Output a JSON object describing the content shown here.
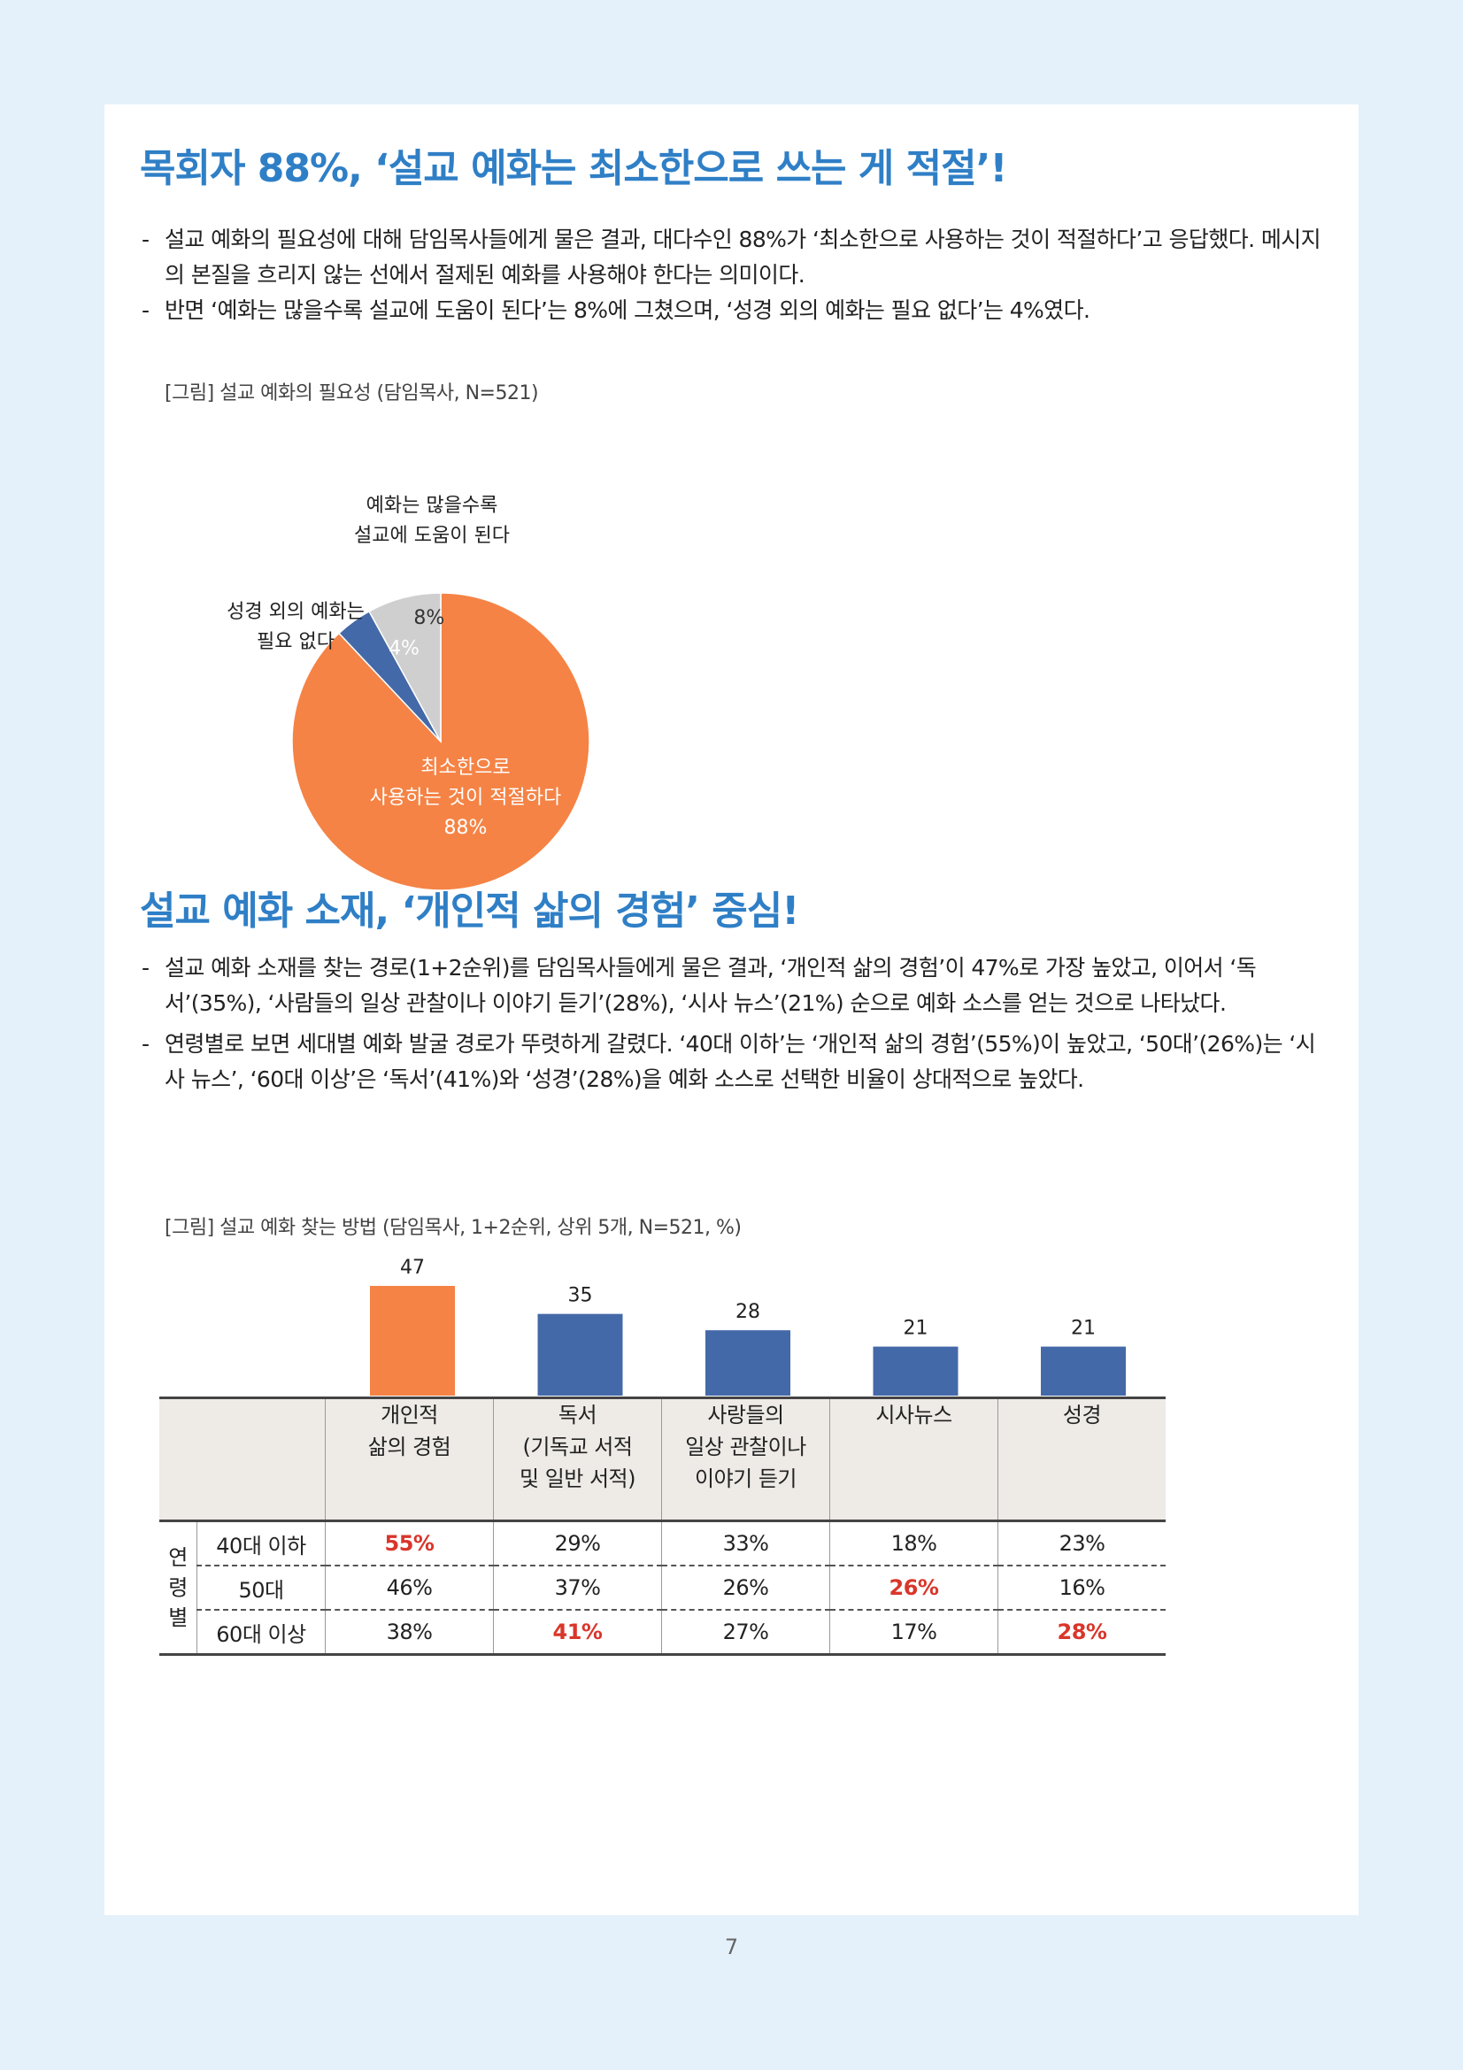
{
  "section1": {
    "title": "목회자 88%, ‘설교 예화는 최소한으로 쓰는 게 적절’!",
    "bullets": [
      "설교 예화의 필요성에 대해 담임목사들에게 물은 결과, 대다수인 88%가 ‘최소한으로 사용하는 것이 적절하다’고 응답했다. 메시지의 본질을 흐리지 않는 선에서 절제된 예화를 사용해야 한다는 의미이다.",
      "반면 ‘예화는 많을수록 설교에 도움이 된다’는 8%에 그쳤으며, ‘성경 외의 예화는 필요 없다’는 4%였다."
    ],
    "caption": "[그림] 설교 예화의 필요성 (담임목사, N=521)"
  },
  "section2": {
    "title": "설교 예화 소재, ‘개인적 삶의 경험’ 중심!",
    "bullets": [
      "설교 예화 소재를 찾는 경로(1+2순위)를 담임목사들에게 물은 결과, ‘개인적 삶의 경험’이 47%로 가장 높았고, 이어서 ‘독서’(35%), ‘사람들의 일상 관찰이나 이야기 듣기’(28%), ‘시사 뉴스’(21%) 순으로 예화 소스를 얻는 것으로 나타났다.",
      "연령별로 보면 세대별 예화 발굴 경로가 뚜렷하게 갈렸다. ‘40대 이하’는 ‘개인적 삶의 경험’(55%)이 높았고, ‘50대’(26%)는 ‘시사 뉴스’, ‘60대 이상’은 ‘독서’(41%)와 ‘성경’(28%)을 예화 소스로 선택한 비율이 상대적으로 높았다."
    ],
    "caption": "[그림] 설교 예화 찾는 방법 (담임목사, 1+2순위, 상위 5개, N=521, %)"
  },
  "chart_data": [
    {
      "type": "pie",
      "title": "",
      "slices": [
        {
          "label_lines": [
            "최소한으로",
            "사용하는 것이 적절하다"
          ],
          "value": 88,
          "value_label": "88%",
          "color": "#f58345"
        },
        {
          "label_lines": [
            "성경 외의 예화는",
            "필요 없다"
          ],
          "value": 4,
          "value_label": "4%",
          "color": "#4469a8"
        },
        {
          "label_lines": [
            "예화는 많을수록",
            "설교에 도움이 된다"
          ],
          "value": 8,
          "value_label": "8%",
          "color": "#cfcfcf"
        }
      ]
    },
    {
      "type": "bar",
      "title": "",
      "values": [
        47,
        35,
        28,
        21,
        21
      ],
      "ylim": [
        0,
        47
      ],
      "colors": [
        "#f58345",
        "#4469a8",
        "#4469a8",
        "#4469a8",
        "#4469a8"
      ],
      "categories": [
        [
          "개인적",
          "삶의 경험"
        ],
        [
          "독서",
          "(기독교 서적",
          "및 일반 서적)"
        ],
        [
          "사랑들의",
          "일상 관찰이나",
          "이야기 듣기"
        ],
        [
          "시사뉴스"
        ],
        [
          "성경"
        ]
      ]
    }
  ],
  "table": {
    "group_label": [
      "연",
      "령",
      "별"
    ],
    "rows": [
      {
        "label": "40대 이하",
        "values": [
          "55%",
          "29%",
          "33%",
          "18%",
          "23%"
        ],
        "highlight": [
          0
        ]
      },
      {
        "label": "50대",
        "values": [
          "46%",
          "37%",
          "26%",
          "26%",
          "16%"
        ],
        "highlight": [
          3
        ]
      },
      {
        "label": "60대 이상",
        "values": [
          "38%",
          "41%",
          "27%",
          "17%",
          "28%"
        ],
        "highlight": [
          1,
          4
        ]
      }
    ]
  },
  "page_number": "7"
}
